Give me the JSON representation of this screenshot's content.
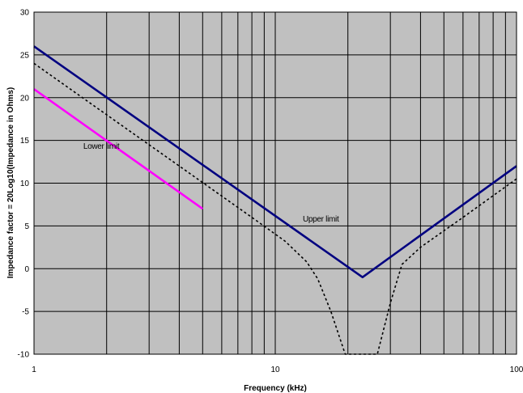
{
  "chart_data": {
    "type": "line",
    "title": "",
    "xlabel": "Frequency (kHz)",
    "ylabel": "Impedance factor = 20Log10(Impedance in Ohms)",
    "x_scale": "log",
    "xlim": [
      1,
      100
    ],
    "ylim": [
      -10,
      30
    ],
    "x_ticks": [
      1,
      10,
      100
    ],
    "y_ticks": [
      -10,
      -5,
      0,
      5,
      10,
      15,
      20,
      25,
      30
    ],
    "grid": true,
    "background": "#c0c0c0",
    "series": [
      {
        "name": "",
        "color": "#000080",
        "style": "solid",
        "x": [
          1,
          23,
          100
        ],
        "y": [
          26,
          -1,
          12
        ]
      },
      {
        "name": "",
        "color": "#ff00ff",
        "style": "solid",
        "x": [
          1,
          5
        ],
        "y": [
          21,
          7
        ]
      },
      {
        "name": "",
        "color": "#000000",
        "style": "dotted",
        "x": [
          1,
          2,
          4,
          8,
          11,
          13.5,
          15,
          17,
          19.5,
          26.5,
          30,
          33.5,
          40,
          60,
          100
        ],
        "y": [
          24,
          18,
          12,
          6,
          3.2,
          0.8,
          -1.2,
          -5,
          -10,
          -10,
          -4,
          0.5,
          2.5,
          6,
          10.5
        ]
      }
    ],
    "annotations": [
      {
        "text": "Lower limit",
        "x": 1.6,
        "y": 14
      },
      {
        "text": "Upper limit",
        "x": 13,
        "y": 5.5
      }
    ]
  }
}
